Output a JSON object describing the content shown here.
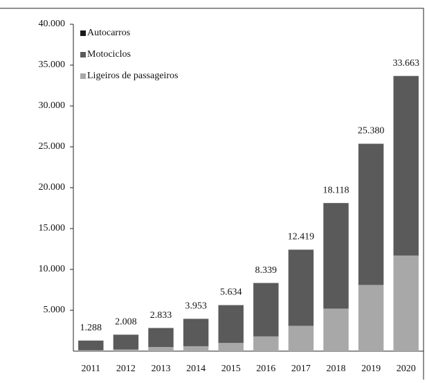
{
  "chart_data": {
    "type": "stacked_bar",
    "categories": [
      "2011",
      "2012",
      "2013",
      "2014",
      "2015",
      "2016",
      "2017",
      "2018",
      "2019",
      "2020"
    ],
    "series": [
      {
        "name": "Autocarros",
        "color": "#1a1a1a",
        "values": [
          20,
          20,
          20,
          20,
          20,
          20,
          20,
          20,
          20,
          20
        ]
      },
      {
        "name": "Motociclos",
        "color": "#5a5a5a",
        "values": [
          1168,
          1788,
          2313,
          3333,
          4614,
          6519,
          9299,
          12898,
          17260,
          21943
        ]
      },
      {
        "name": "Ligeiros de passageiros",
        "color": "#a8a8a8",
        "values": [
          100,
          200,
          500,
          600,
          1000,
          1800,
          3100,
          5200,
          8100,
          11700
        ]
      }
    ],
    "totals": {
      "values": [
        1288,
        2008,
        2833,
        3953,
        5634,
        8339,
        12419,
        18118,
        25380,
        33663
      ],
      "value_labels": [
        "1.288",
        "2.008",
        "2.833",
        "3.953",
        "5.634",
        "8.339",
        "12.419",
        "18.118",
        "25.380",
        "33.663"
      ]
    },
    "ylim": [
      0,
      40000
    ],
    "yticks": [
      {
        "value": 5000,
        "label": "5.000"
      },
      {
        "value": 10000,
        "label": "10.000"
      },
      {
        "value": 15000,
        "label": "15.000"
      },
      {
        "value": 20000,
        "label": "20.000"
      },
      {
        "value": 25000,
        "label": "25.000"
      },
      {
        "value": 30000,
        "label": "30.000"
      },
      {
        "value": 35000,
        "label": "35.000"
      },
      {
        "value": 40000,
        "label": "40.000"
      }
    ],
    "legend": "top-left",
    "grid": false
  }
}
